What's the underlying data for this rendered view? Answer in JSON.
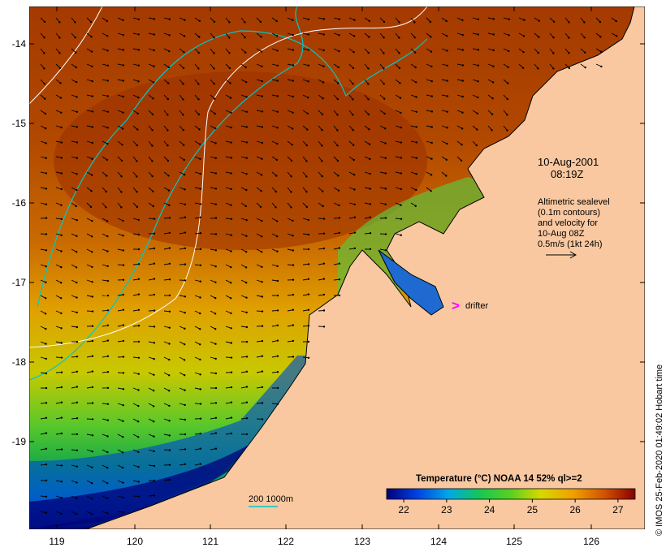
{
  "map": {
    "x_ticks": [
      "119",
      "120",
      "121",
      "122",
      "123",
      "124",
      "125",
      "126"
    ],
    "y_ticks": [
      "-14",
      "-15",
      "-16",
      "-17",
      "-18",
      "-19"
    ]
  },
  "annotation": {
    "date": "10-Aug-2001",
    "time": "08:19Z",
    "altimetry_lines": [
      "Altimetric sealevel",
      "(0.1m contours)",
      "and velocity for",
      "10-Aug 08Z",
      "0.5m/s (1kt 24h)"
    ]
  },
  "drifter": {
    "label": "drifter",
    "color": "#ff00ff"
  },
  "depth_legend": {
    "label": "200  1000m",
    "color": "#00c8c8"
  },
  "colorbar": {
    "title": "Temperature (°C) NOAA 14 52% ql>=2",
    "ticks": [
      "22",
      "23",
      "24",
      "25",
      "26",
      "27"
    ],
    "range": [
      21.6,
      27.4
    ]
  },
  "credit": "© IMOS 25-Feb-2020 01:49:02 Hobart time",
  "colors": {
    "land": "#f9c8a0",
    "warm": "#a43a00",
    "cool": "#00007a",
    "vector": "#000000"
  }
}
